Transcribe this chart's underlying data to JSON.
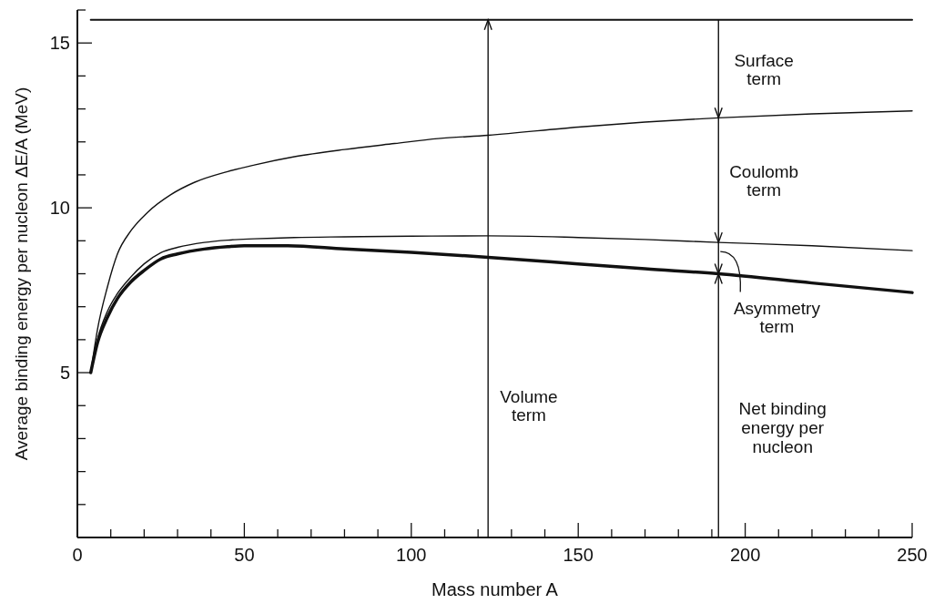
{
  "chart_data": {
    "type": "line",
    "xlabel": "Mass number A",
    "ylabel": "Average binding energy per nucleon ΔE/A (MeV)",
    "xlim": [
      0,
      250
    ],
    "ylim": [
      0,
      16
    ],
    "xticks": [
      0,
      {
        "value": 10,
        "label": null
      },
      {
        "value": 20,
        "label": null
      },
      {
        "value": 30,
        "label": null
      },
      {
        "value": 40,
        "label": null
      },
      50,
      {
        "value": 60,
        "label": null
      },
      {
        "value": 70,
        "label": null
      },
      {
        "value": 80,
        "label": null
      },
      {
        "value": 90,
        "label": null
      },
      100,
      {
        "value": 110,
        "label": null
      },
      {
        "value": 120,
        "label": null
      },
      {
        "value": 130,
        "label": null
      },
      {
        "value": 140,
        "label": null
      },
      150,
      {
        "value": 160,
        "label": null
      },
      {
        "value": 170,
        "label": null
      },
      {
        "value": 180,
        "label": null
      },
      {
        "value": 190,
        "label": null
      },
      200,
      {
        "value": 210,
        "label": null
      },
      {
        "value": 220,
        "label": null
      },
      {
        "value": 230,
        "label": null
      },
      {
        "value": 240,
        "label": null
      },
      250
    ],
    "yticks": [
      {
        "value": 1,
        "label": null
      },
      {
        "value": 2,
        "label": null
      },
      {
        "value": 3,
        "label": null
      },
      {
        "value": 4,
        "label": null
      },
      5,
      {
        "value": 6,
        "label": null
      },
      {
        "value": 7,
        "label": null
      },
      {
        "value": 8,
        "label": null
      },
      {
        "value": 9,
        "label": null
      },
      10,
      {
        "value": 11,
        "label": null
      },
      {
        "value": 12,
        "label": null
      },
      {
        "value": 13,
        "label": null
      },
      {
        "value": 14,
        "label": null
      },
      15,
      {
        "value": 16,
        "label": null
      }
    ],
    "grid": false,
    "marker": "none",
    "line_style": "solid",
    "ref_lines": [
      {
        "axis": "x",
        "value": 123
      },
      {
        "axis": "x",
        "value": 192
      }
    ],
    "series": [
      {
        "color": "#111111",
        "x": [
          4,
          250
        ],
        "values": [
          15.7,
          15.7
        ]
      },
      {
        "color": "#111111",
        "x": [
          4,
          6,
          9,
          12,
          16,
          21,
          28,
          35,
          45,
          53,
          65,
          80,
          95,
          108,
          123,
          150,
          170,
          192,
          220,
          250
        ],
        "values": [
          5,
          6.3,
          7.6,
          8.6,
          9.3,
          9.86,
          10.4,
          10.77,
          11.1,
          11.3,
          11.55,
          11.77,
          11.95,
          12.1,
          12.2,
          12.45,
          12.6,
          12.73,
          12.85,
          12.94
        ]
      },
      {
        "color": "#111111",
        "x": [
          4,
          6,
          9,
          12,
          16,
          20,
          25,
          30,
          38,
          45,
          53,
          65,
          80,
          100,
          123,
          150,
          170,
          192,
          220,
          250
        ],
        "values": [
          5,
          6.0,
          6.86,
          7.4,
          7.9,
          8.3,
          8.64,
          8.8,
          8.95,
          9.02,
          9.06,
          9.1,
          9.12,
          9.14,
          9.15,
          9.1,
          9.04,
          8.95,
          8.85,
          8.7
        ]
      },
      {
        "color": "#111111",
        "x": [
          4,
          6,
          9,
          12,
          16,
          20,
          25,
          30,
          38,
          45,
          50,
          63,
          80,
          100,
          123,
          150,
          170,
          192,
          220,
          250
        ],
        "values": [
          5,
          5.9,
          6.68,
          7.25,
          7.75,
          8.1,
          8.45,
          8.6,
          8.75,
          8.82,
          8.85,
          8.85,
          8.75,
          8.65,
          8.5,
          8.3,
          8.15,
          8.0,
          7.72,
          7.43
        ]
      }
    ],
    "annotations": [
      "Volume\nterm",
      "Surface\nterm",
      "Coulomb\nterm",
      "Asymmetry\nterm",
      "Net binding\nenergy per\nnucleon"
    ]
  }
}
